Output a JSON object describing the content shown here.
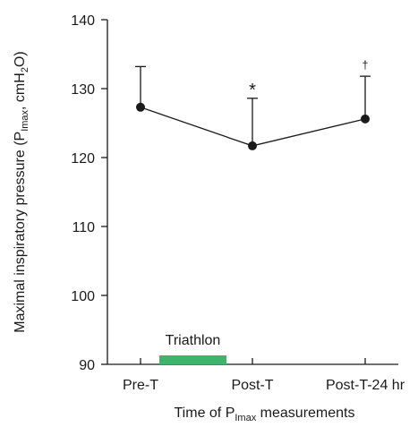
{
  "chart_data": {
    "type": "line",
    "categories": [
      "Pre-T",
      "Post-T",
      "Post-T-24 hr"
    ],
    "series": [
      {
        "values": [
          127.3,
          121.7,
          125.6
        ],
        "error_upper": [
          133.2,
          128.6,
          131.8
        ]
      }
    ],
    "ylim": [
      90,
      140
    ],
    "yticks": [
      90,
      100,
      110,
      120,
      130,
      140
    ],
    "ytick_labels": [
      "90",
      "100",
      "110",
      "120",
      "130",
      "140"
    ],
    "ylabel_parts": [
      "Maximal inspiratory pressure (P",
      "Imax",
      ", cmH",
      "2",
      "O)"
    ],
    "xlabel_parts": [
      "Time of P",
      "Imax",
      " measurements"
    ],
    "annotations": [
      {
        "category": "Post-T",
        "text": "*"
      },
      {
        "category": "Post-T-24 hr",
        "text": "†"
      }
    ],
    "event_bar": {
      "label": "Triathlon",
      "from": "Pre-T",
      "to": "Post-T",
      "color": "#3cb66a"
    },
    "grid": false,
    "line_color": "#1a1a1a"
  }
}
